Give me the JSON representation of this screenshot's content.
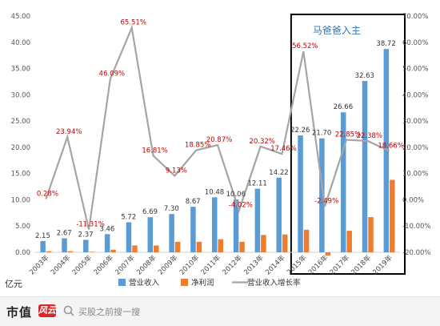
{
  "chart_data": {
    "type": "bar",
    "title": "马爸爸入主",
    "unit_label": "亿元",
    "categories": [
      "2003年",
      "2004年",
      "2005年",
      "2006年",
      "2007年",
      "2008年",
      "2009年",
      "2010年",
      "2011年",
      "2012年",
      "2013年",
      "2014年",
      "2015年",
      "2016年",
      "2017年",
      "2018年",
      "2019年"
    ],
    "series": [
      {
        "name": "营业收入",
        "kind": "bar",
        "axis": "left",
        "color": "#5b9bd5",
        "values": [
          2.15,
          2.67,
          2.37,
          3.46,
          5.72,
          6.69,
          7.3,
          8.67,
          10.48,
          10.06,
          12.11,
          14.22,
          22.26,
          21.7,
          26.66,
          32.63,
          38.72
        ],
        "labels": [
          "2.15",
          "2.67",
          "2.37",
          "3.46",
          "5.72",
          "6.69",
          "7.30",
          "8.67",
          "10.48",
          "10.06",
          "12.11",
          "14.22",
          "22.26",
          "21.70",
          "26.66",
          "32.63",
          "38.72"
        ]
      },
      {
        "name": "净利润",
        "kind": "bar",
        "axis": "left",
        "color": "#ed7d31",
        "values": [
          0.2,
          0.2,
          0.1,
          0.5,
          1.3,
          1.3,
          2.0,
          2.0,
          2.5,
          2.0,
          3.3,
          3.4,
          4.3,
          -0.6,
          4.1,
          6.7,
          13.8
        ]
      },
      {
        "name": "营业收入增长率",
        "kind": "line",
        "axis": "right",
        "color": "#a5a5a5",
        "values": [
          0.28,
          23.94,
          -11.31,
          46.09,
          65.51,
          16.81,
          9.13,
          18.85,
          20.87,
          -4.02,
          20.32,
          17.46,
          56.52,
          -2.49,
          22.85,
          22.38,
          18.66
        ],
        "labels": [
          "0.28%",
          "23.94%",
          "-11.31%",
          "46.09%",
          "65.51%",
          "16.81%",
          "9.13%",
          "18.85%",
          "20.87%",
          "-4.02%",
          "20.32%",
          "17.46%",
          "56.52%",
          "-2.49%",
          "22.85%",
          "22.38%",
          "18.66%"
        ]
      }
    ],
    "y_left": {
      "ylim": [
        0,
        45
      ],
      "ticks": [
        "0.00",
        "5.00",
        "10.00",
        "15.00",
        "20.00",
        "25.00",
        "30.00",
        "35.00",
        "40.00",
        "45.00"
      ]
    },
    "y_right": {
      "ylim": [
        -20,
        70
      ],
      "ticks": [
        "-20.00%",
        "-10.00%",
        "0.00%",
        "10.00%",
        "20.00%",
        "30.00%",
        "40.00%",
        "50.00%",
        "60.00%",
        "70.00%"
      ]
    },
    "highlight": {
      "from": "2015年",
      "to": "2019年",
      "label": "马爸爸入主"
    },
    "legend_placement": "bottom",
    "grid": false,
    "colors": {
      "bar_label": "#333333",
      "line_label": "#c00000",
      "highlight_border": "#000000",
      "highlight_label": "#2e75b6"
    }
  },
  "footer": {
    "brand": "市值",
    "brand_mark": "风云",
    "search_text": "买股之前搜一搜"
  }
}
